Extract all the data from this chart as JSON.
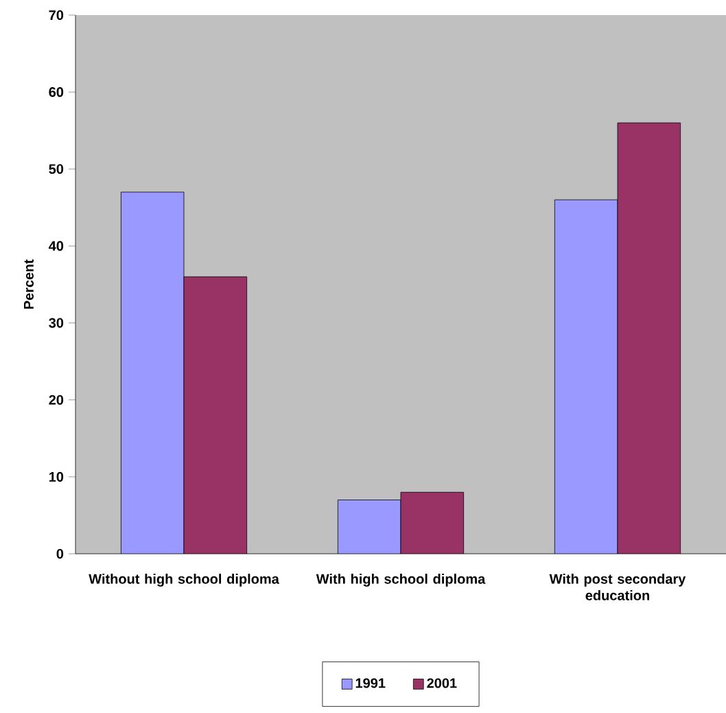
{
  "chart_data": {
    "type": "bar",
    "ylabel": "Percent",
    "categories": [
      "Without high school diploma",
      "With high school diploma",
      "With post secondary education"
    ],
    "series": [
      {
        "name": "1991",
        "color": "#9999ff",
        "values": [
          47,
          7,
          46
        ]
      },
      {
        "name": "2001",
        "color": "#993366",
        "values": [
          36,
          8,
          56
        ]
      }
    ],
    "ylim": [
      0,
      70
    ],
    "yticks": [
      0,
      10,
      20,
      30,
      40,
      50,
      60,
      70
    ],
    "legend": "bottom",
    "grid": false
  }
}
